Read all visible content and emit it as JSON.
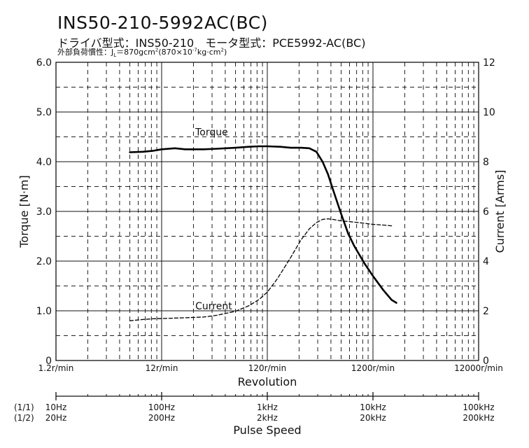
{
  "header": {
    "title": "INS50-210-5992AC(BC)",
    "subtitle": "ドライバ型式：INS50-210　モータ型式：PCE5992-AC(BC)",
    "note_prefix": "外部負荷慣性：J",
    "note_sub": "L",
    "note_mid": "＝870gcm",
    "note_sup1": "2",
    "note_mid2": "(870×10",
    "note_sup2": "-7",
    "note_mid3": "kg·cm",
    "note_sup3": "2",
    "note_end": ")"
  },
  "chart_data": {
    "type": "line",
    "x_scale": "log",
    "xlabel": "Revolution",
    "ylabel_left": "Torque [N·m]",
    "ylabel_right": "Current [Arms]",
    "xlim": [
      1.2,
      12000
    ],
    "ylim_left": [
      0,
      6
    ],
    "ylim_right": [
      0,
      12
    ],
    "y_ticks_left": [
      "0",
      "1.0",
      "2.0",
      "3.0",
      "4.0",
      "5.0",
      "6.0"
    ],
    "y_ticks_right": [
      "0",
      "2",
      "4",
      "6",
      "8",
      "10",
      "12"
    ],
    "x_ticks": [
      {
        "value": 1.2,
        "label": "1.2r/min"
      },
      {
        "value": 12,
        "label": "12r/min"
      },
      {
        "value": 120,
        "label": "120r/min"
      },
      {
        "value": 1200,
        "label": "1200r/min"
      },
      {
        "value": 12000,
        "label": "12000r/min"
      }
    ],
    "grid": true,
    "series": [
      {
        "name": "Torque",
        "axis": "left",
        "style": "solid",
        "color": "#000000",
        "x": [
          6,
          8,
          10,
          12,
          16,
          20,
          30,
          40,
          60,
          80,
          100,
          120,
          160,
          200,
          250,
          300,
          350,
          400,
          450,
          500,
          600,
          700,
          800,
          1000,
          1200,
          1500,
          1800,
          2000
        ],
        "y": [
          4.19,
          4.2,
          4.22,
          4.25,
          4.27,
          4.25,
          4.25,
          4.26,
          4.28,
          4.3,
          4.31,
          4.31,
          4.3,
          4.28,
          4.28,
          4.27,
          4.2,
          4.0,
          3.75,
          3.45,
          2.95,
          2.55,
          2.3,
          1.95,
          1.7,
          1.42,
          1.22,
          1.16
        ]
      },
      {
        "name": "Current",
        "axis": "right",
        "style": "dashed",
        "color": "#000000",
        "x": [
          6,
          8,
          10,
          15,
          20,
          30,
          40,
          60,
          80,
          100,
          120,
          150,
          200,
          250,
          300,
          350,
          400,
          450,
          500,
          600,
          800,
          1000,
          1200,
          1500,
          1800
        ],
        "y": [
          1.6,
          1.65,
          1.68,
          1.7,
          1.72,
          1.75,
          1.82,
          1.98,
          2.2,
          2.45,
          2.75,
          3.3,
          4.15,
          4.85,
          5.3,
          5.55,
          5.68,
          5.7,
          5.68,
          5.62,
          5.57,
          5.52,
          5.48,
          5.45,
          5.42
        ]
      }
    ],
    "annotations": [
      {
        "text": "Torque",
        "x": 25,
        "y_left": 4.6
      },
      {
        "text": "Current",
        "x": 25,
        "y_left": 1.1
      }
    ]
  },
  "pulse_speed": {
    "row_labels": [
      "(1/1)",
      "(1/2)"
    ],
    "ticks": [
      {
        "value": 1.2,
        "full": "10Hz",
        "half": "20Hz"
      },
      {
        "value": 12,
        "full": "100Hz",
        "half": "200Hz"
      },
      {
        "value": 120,
        "full": "1kHz",
        "half": "2kHz"
      },
      {
        "value": 1200,
        "full": "10kHz",
        "half": "20kHz"
      },
      {
        "value": 12000,
        "full": "100kHz",
        "half": "200kHz"
      }
    ],
    "label": "Pulse Speed"
  }
}
